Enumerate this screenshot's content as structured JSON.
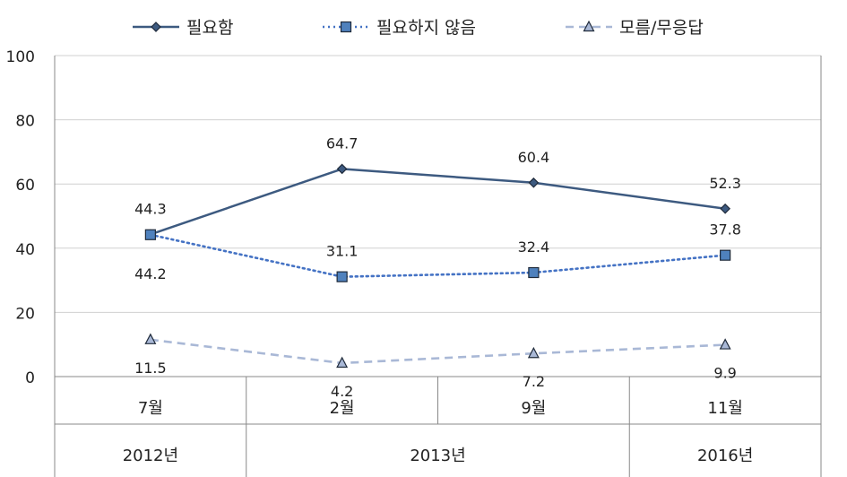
{
  "chart_data": {
    "type": "line",
    "categories": [
      "7월",
      "2월",
      "9월",
      "11월"
    ],
    "category_groups": [
      {
        "label": "2012년",
        "span": 1
      },
      {
        "label": "2013년",
        "span": 2
      },
      {
        "label": "2016년",
        "span": 1
      }
    ],
    "ylim": [
      0,
      100
    ],
    "yticks": [
      0,
      20,
      40,
      60,
      80,
      100
    ],
    "grid": true,
    "legend_position": "top",
    "series": [
      {
        "name": "필요함",
        "values": [
          44.3,
          64.7,
          60.4,
          52.3
        ],
        "labels": [
          "44.3",
          "64.7",
          "60.4",
          "52.3"
        ],
        "color": "#3d5a80",
        "line_style": "solid",
        "marker": "diamond"
      },
      {
        "name": "필요하지 않음",
        "values": [
          44.2,
          31.1,
          32.4,
          37.8
        ],
        "labels": [
          "44.2",
          "31.1",
          "32.4",
          "37.8"
        ],
        "color": "#4472c4",
        "line_style": "dotted",
        "marker": "square"
      },
      {
        "name": "모름/무응답",
        "values": [
          11.5,
          4.2,
          7.2,
          9.9
        ],
        "labels": [
          "11.5",
          "4.2",
          "7.2",
          "9.9"
        ],
        "color": "#a9b8d6",
        "line_style": "dashed",
        "marker": "triangle"
      }
    ]
  }
}
